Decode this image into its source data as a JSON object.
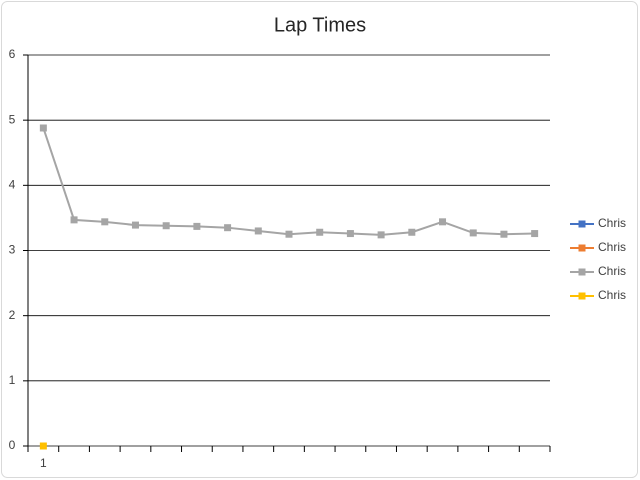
{
  "chart_data": {
    "type": "line",
    "title": "Lap Times",
    "categories": [
      "1",
      null,
      null,
      null,
      null,
      null,
      null,
      null,
      null,
      null,
      null,
      null,
      null,
      null,
      null,
      null,
      null
    ],
    "series": [
      {
        "name": "Chris",
        "color": "#4472c4",
        "values": [
          null,
          null,
          null,
          null,
          null,
          null,
          null,
          null,
          null,
          null,
          null,
          null,
          null,
          null,
          null,
          null,
          null
        ]
      },
      {
        "name": "Chris",
        "color": "#ed7d31",
        "values": [
          null,
          null,
          null,
          null,
          null,
          null,
          null,
          null,
          null,
          null,
          null,
          null,
          null,
          null,
          null,
          null,
          null
        ]
      },
      {
        "name": "Chris",
        "color": "#a5a5a5",
        "values": [
          4.88,
          3.47,
          3.44,
          3.39,
          3.38,
          3.37,
          3.35,
          3.3,
          3.25,
          3.28,
          3.26,
          3.24,
          3.28,
          3.44,
          3.27,
          3.25,
          3.26
        ]
      },
      {
        "name": "Chris",
        "color": "#ffc000",
        "values": [
          0,
          null,
          null,
          null,
          null,
          null,
          null,
          null,
          null,
          null,
          null,
          null,
          null,
          null,
          null,
          null,
          null
        ]
      }
    ],
    "ylim": [
      0,
      6
    ],
    "yticks": [
      0,
      1,
      2,
      3,
      4,
      5,
      6
    ],
    "grid": true,
    "legend": "right"
  }
}
